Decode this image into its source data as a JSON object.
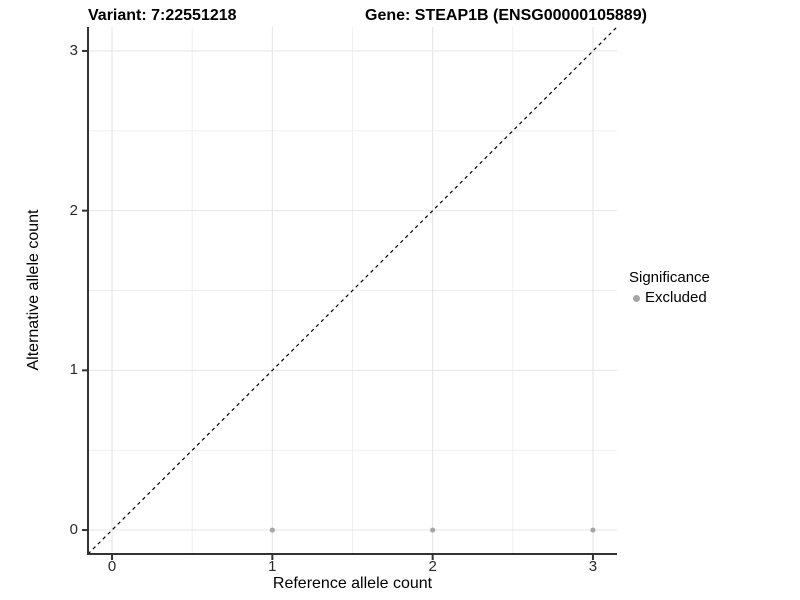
{
  "header": {
    "variant_title": "Variant: 7:22551218",
    "gene_title": "Gene: STEAP1B (ENSG00000105889)"
  },
  "legend": {
    "title": "Significance",
    "items": [
      {
        "label": "Excluded",
        "color": "#a6a6a6"
      }
    ],
    "position": "right"
  },
  "chart_data": {
    "type": "scatter",
    "title": "",
    "xlabel": "Reference allele count",
    "ylabel": "Alternative allele count",
    "xlim": [
      -0.15,
      3.15
    ],
    "ylim": [
      -0.15,
      3.15
    ],
    "x_ticks": [
      0,
      1,
      2,
      3
    ],
    "y_ticks": [
      0,
      1,
      2,
      3
    ],
    "x_minor_ticks": [
      0.5,
      1.5,
      2.5
    ],
    "y_minor_ticks": [
      0.5,
      1.5,
      2.5
    ],
    "grid": true,
    "series": [
      {
        "name": "Excluded",
        "color": "#a6a6a6",
        "points": [
          [
            1,
            0
          ],
          [
            2,
            0
          ],
          [
            3,
            0
          ]
        ]
      }
    ],
    "reference_line": {
      "slope": 1,
      "intercept": 0,
      "style": "dashed",
      "color": "#000000"
    }
  },
  "colors": {
    "axis_line": "#333333",
    "major_grid": "#e4e4e4",
    "minor_grid": "#f0f0f0",
    "tick_label": "#2b2b2b",
    "point": "#a6a6a6",
    "background": "#ffffff"
  }
}
